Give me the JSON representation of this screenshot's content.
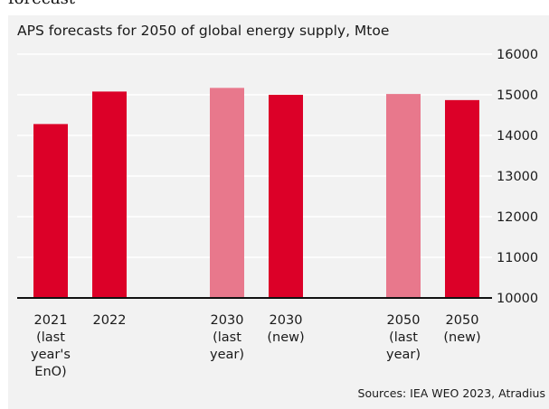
{
  "caption_fragment": "forecast",
  "chart_data": {
    "type": "bar",
    "title": "APS forecasts for 2050 of global energy supply, Mtoe",
    "source": "Sources: IEA WEO 2023, Atradius",
    "categories": [
      [
        "2021",
        "(last",
        "year's",
        "EnO)"
      ],
      [
        "2022"
      ],
      [
        "2030",
        "(last",
        "year)"
      ],
      [
        "2030",
        "(new)"
      ],
      [
        "2050",
        "(last",
        "year)"
      ],
      [
        "2050",
        "(new)"
      ]
    ],
    "values": [
      14280,
      15080,
      15170,
      15000,
      15020,
      14870
    ],
    "bar_colors": [
      "#dc0028",
      "#dc0028",
      "#e8788c",
      "#dc0028",
      "#e8788c",
      "#dc0028"
    ],
    "ylim": [
      10000,
      16000
    ],
    "yticks": [
      "10000",
      "11000",
      "12000",
      "13000",
      "14000",
      "15000",
      "16000"
    ],
    "grid": true,
    "xlabel": "",
    "ylabel": ""
  }
}
